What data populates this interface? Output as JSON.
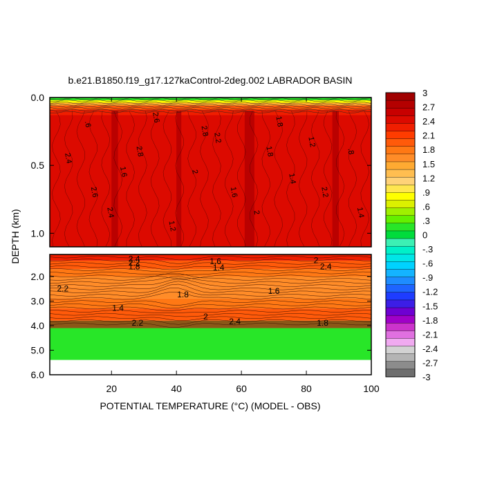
{
  "chart_data": {
    "type": "heatmap",
    "title": "b.e21.B1850.f19_g17.127kaControl-2deg.002 LABRADOR BASIN",
    "xlabel": "POTENTIAL TEMPERATURE (°C) (MODEL - OBS)",
    "ylabel": "DEPTH (km)",
    "x_range": [
      1,
      100
    ],
    "x_ticks": [
      "20",
      "40",
      "60",
      "80",
      "100"
    ],
    "upper_panel": {
      "depth_range_km": [
        0.0,
        1.1
      ],
      "y_ticks": [
        "0.0",
        "0.5",
        "1.0"
      ],
      "contour_labels": [
        "2.4",
        "2.6",
        "2.8",
        "2",
        "2.2",
        "1.6",
        "1.8",
        "1.4",
        "1.2",
        ".8",
        ".6"
      ],
      "dominant_value": 2.5
    },
    "lower_panel": {
      "depth_range_km": [
        1.1,
        6.0
      ],
      "y_ticks": [
        "2.0",
        "3.0",
        "4.0",
        "5.0",
        "6.0"
      ],
      "layers": [
        {
          "from_km": 1.1,
          "to_km": 1.35,
          "value": 2.3
        },
        {
          "from_km": 1.35,
          "to_km": 1.7,
          "value": 2.0
        },
        {
          "from_km": 1.7,
          "to_km": 2.0,
          "value": 1.8
        },
        {
          "from_km": 2.0,
          "to_km": 2.4,
          "value": 1.6
        },
        {
          "from_km": 2.4,
          "to_km": 2.9,
          "value": 1.6
        },
        {
          "from_km": 2.9,
          "to_km": 3.3,
          "value": 1.8
        },
        {
          "from_km": 3.3,
          "to_km": 3.8,
          "value": 2.0
        },
        {
          "from_km": 3.8,
          "to_km": 4.1,
          "value": 1.0
        },
        {
          "from_km": 4.1,
          "to_km": 5.4,
          "value": 0.2
        }
      ],
      "contour_labels": [
        "2.4",
        "2.2",
        "1.8",
        "1.6",
        "1.4",
        "2"
      ]
    },
    "colorbar": {
      "min": -3,
      "max": 3,
      "tick_labels": [
        "3",
        "2.7",
        "2.4",
        "2.1",
        "1.8",
        "1.5",
        "1.2",
        ".9",
        ".6",
        ".3",
        "0",
        "-.3",
        "-.6",
        "-.9",
        "-1.2",
        "-1.5",
        "-1.8",
        "-2.1",
        "-2.4",
        "-2.7",
        "-3"
      ]
    },
    "grid": false,
    "legend": "right colorbar"
  }
}
